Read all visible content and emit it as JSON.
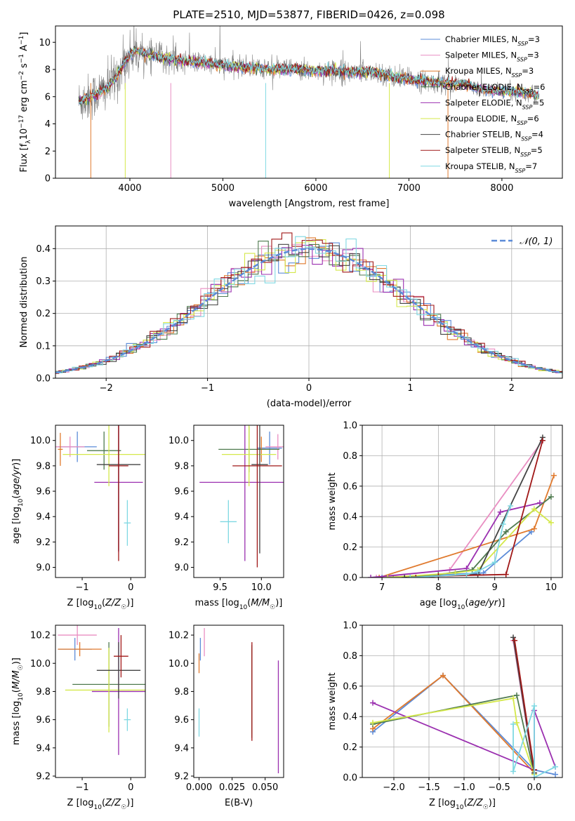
{
  "figure": {
    "title": "PLATE=2510, MJD=53877, FIBERID=0426, z=0.098"
  },
  "chart_data": [
    {
      "type": "line",
      "panel": "spectrum",
      "title": "PLATE=2510, MJD=53877, FIBERID=0426, z=0.098",
      "xlabel": "wavelength [Angstrom, rest frame]",
      "ylabel": "Flux [f_λ 10^-17 erg cm^-2 s^-1 A^-1]",
      "xlim": [
        3200,
        8650
      ],
      "ylim": [
        0,
        11.2
      ],
      "xticks": [
        4000,
        5000,
        6000,
        7000,
        8000
      ],
      "yticks": [
        0,
        2,
        4,
        6,
        8,
        10
      ],
      "grid": false,
      "legend_position": "right",
      "data_series": {
        "name": "",
        "color": "#808080"
      },
      "continuum_points": {
        "x": [
          3450,
          3550,
          3650,
          3750,
          3850,
          3950,
          4050,
          4200,
          4400,
          4600,
          4800,
          5000,
          5200,
          5400,
          5600,
          5800,
          6000,
          6200,
          6400,
          6600,
          6800,
          7000,
          7200,
          7400,
          7600,
          7800,
          8000,
          8200,
          8400
        ],
        "y": [
          5.6,
          5.9,
          6.2,
          6.6,
          7.4,
          8.6,
          9.4,
          9.1,
          8.8,
          8.6,
          8.5,
          8.3,
          8.2,
          8.1,
          8.0,
          8.0,
          7.9,
          7.9,
          7.8,
          7.9,
          7.5,
          7.3,
          7.1,
          7.0,
          6.9,
          6.5,
          6.4,
          6.3,
          6.1
        ]
      },
      "series": [
        {
          "name": "Chabrier MILES, N_SSP=3",
          "color": "#5b8bd8"
        },
        {
          "name": "Salpeter MILES, N_SSP=3",
          "color": "#e98ec2"
        },
        {
          "name": "Kroupa MILES, N_SSP=3",
          "color": "#e07a2e"
        },
        {
          "name": "Chabrier ELODIE, N_SSP=6",
          "color": "#4f7a4f"
        },
        {
          "name": "Salpeter ELODIE, N_SSP=5",
          "color": "#9b30b0"
        },
        {
          "name": "Kroupa ELODIE, N_SSP=6",
          "color": "#d4e84a"
        },
        {
          "name": "Chabrier STELIB, N_SSP=4",
          "color": "#444444"
        },
        {
          "name": "Salpeter STELIB, N_SSP=5",
          "color": "#a01818"
        },
        {
          "name": "Kroupa STELIB, N_SSP=7",
          "color": "#7fd8e2"
        }
      ]
    },
    {
      "type": "histogram",
      "panel": "residuals",
      "xlabel": "(data-model)/error",
      "ylabel": "Normed distribution",
      "xlim": [
        -2.5,
        2.5
      ],
      "ylim": [
        0,
        0.47
      ],
      "xticks": [
        -2,
        -1,
        0,
        1,
        2
      ],
      "yticks": [
        0.0,
        0.1,
        0.2,
        0.3,
        0.4
      ],
      "grid": true,
      "legend_position": "top-right",
      "reference_curve": {
        "name": "𝒩(0, 1)",
        "color": "#5b8bd8",
        "style": "dashed"
      },
      "bin_width": 0.1
    },
    {
      "type": "scatter",
      "panel": "age-vs-Z",
      "xlabel": "Z [log10(Z/Z☉)]",
      "ylabel": "age [log10(age/yr)]",
      "xlim": [
        -1.55,
        0.3
      ],
      "ylim": [
        8.92,
        10.12
      ],
      "xticks": [
        -1,
        0
      ],
      "yticks": [
        9.0,
        9.2,
        9.4,
        9.6,
        9.8,
        10.0
      ],
      "points": [
        {
          "series": 0,
          "x": -1.1,
          "y": 9.95,
          "xerr": 0.4,
          "yerr": 0.12
        },
        {
          "series": 1,
          "x": -1.25,
          "y": 9.95,
          "xerr": 0.3,
          "yerr": 0.08
        },
        {
          "series": 2,
          "x": -1.45,
          "y": 9.93,
          "xerr": 0.05,
          "yerr": 0.13
        },
        {
          "series": 3,
          "x": -0.55,
          "y": 9.92,
          "xerr": 0.35,
          "yerr": 0.15
        },
        {
          "series": 4,
          "x": -0.25,
          "y": 9.67,
          "xerr": 0.5,
          "yerr": 0.55
        },
        {
          "series": 5,
          "x": -0.45,
          "y": 9.89,
          "xerr": 0.95,
          "yerr": 0.25
        },
        {
          "series": 6,
          "x": -0.25,
          "y": 9.81,
          "xerr": 0.45,
          "yerr": 0.68
        },
        {
          "series": 7,
          "x": -0.25,
          "y": 9.8,
          "xerr": 0.2,
          "yerr": 0.75
        },
        {
          "series": 8,
          "x": -0.07,
          "y": 9.35,
          "xerr": 0.07,
          "yerr": 0.18
        }
      ]
    },
    {
      "type": "scatter",
      "panel": "age-vs-mass",
      "xlabel": "mass [log10(M/M☉)]",
      "ylabel": "",
      "xlim": [
        9.18,
        10.27
      ],
      "ylim": [
        8.92,
        10.12
      ],
      "xticks": [
        9.5,
        10.0
      ],
      "yticks": [
        9.0,
        9.2,
        9.4,
        9.6,
        9.8,
        10.0
      ],
      "points": [
        {
          "series": 0,
          "x": 10.1,
          "y": 9.94,
          "xerr": 0.15,
          "yerr": 0.13
        },
        {
          "series": 1,
          "x": 10.2,
          "y": 9.95,
          "xerr": 0.15,
          "yerr": 0.1
        },
        {
          "series": 2,
          "x": 10.0,
          "y": 9.93,
          "xerr": 0.05,
          "yerr": 0.1
        },
        {
          "series": 3,
          "x": 9.85,
          "y": 9.93,
          "xerr": 0.37,
          "yerr": 0.18
        },
        {
          "series": 4,
          "x": 9.8,
          "y": 9.67,
          "xerr": 0.55,
          "yerr": 0.62
        },
        {
          "series": 5,
          "x": 9.85,
          "y": 9.89,
          "xerr": 0.33,
          "yerr": 0.25
        },
        {
          "series": 6,
          "x": 9.98,
          "y": 9.81,
          "xerr": 0.1,
          "yerr": 0.7
        },
        {
          "series": 7,
          "x": 9.95,
          "y": 9.8,
          "xerr": 0.3,
          "yerr": 0.8
        },
        {
          "series": 8,
          "x": 9.6,
          "y": 9.36,
          "xerr": 0.1,
          "yerr": 0.17
        }
      ]
    },
    {
      "type": "line",
      "panel": "massweight-vs-age",
      "xlabel": "age [log10(age/yr)]",
      "ylabel": "mass weight",
      "xlim": [
        6.65,
        10.2
      ],
      "ylim": [
        0,
        1.0
      ],
      "xticks": [
        7,
        8,
        9,
        10
      ],
      "yticks": [
        0.0,
        0.2,
        0.4,
        0.6,
        0.8,
        1.0
      ],
      "grid": true,
      "series": [
        {
          "series": 0,
          "x": [
            7.0,
            8.8,
            9.65
          ],
          "y": [
            0.0,
            0.03,
            0.3
          ]
        },
        {
          "series": 1,
          "x": [
            6.9,
            8.2,
            9.85
          ],
          "y": [
            0.0,
            0.05,
            0.9
          ]
        },
        {
          "series": 2,
          "x": [
            6.95,
            9.7,
            10.05
          ],
          "y": [
            0.0,
            0.32,
            0.67
          ]
        },
        {
          "series": 3,
          "x": [
            7.2,
            8.0,
            8.6,
            9.2,
            10.0
          ],
          "y": [
            0.0,
            0.02,
            0.05,
            0.3,
            0.53
          ]
        },
        {
          "series": 4,
          "x": [
            6.8,
            8.5,
            9.1,
            9.8
          ],
          "y": [
            0.0,
            0.06,
            0.43,
            0.49
          ]
        },
        {
          "series": 5,
          "x": [
            7.1,
            8.3,
            8.7,
            9.7,
            10.0
          ],
          "y": [
            0.0,
            0.03,
            0.05,
            0.45,
            0.36
          ]
        },
        {
          "series": 6,
          "x": [
            7.4,
            8.7,
            9.85
          ],
          "y": [
            0.0,
            0.02,
            0.92
          ]
        },
        {
          "series": 7,
          "x": [
            7.6,
            8.0,
            9.2,
            9.85
          ],
          "y": [
            0.0,
            0.01,
            0.02,
            0.9
          ]
        },
        {
          "series": 8,
          "x": [
            7.5,
            8.5,
            8.7,
            9.0,
            9.15,
            9.28
          ],
          "y": [
            0.0,
            0.02,
            0.04,
            0.1,
            0.35,
            0.47
          ]
        }
      ]
    },
    {
      "type": "scatter",
      "panel": "mass-vs-Z",
      "xlabel": "Z [log10(Z/Z☉)]",
      "ylabel": "mass [log10(M/M☉)]",
      "xlim": [
        -1.55,
        0.3
      ],
      "ylim": [
        9.19,
        10.27
      ],
      "xticks": [
        -1,
        0
      ],
      "yticks": [
        9.2,
        9.4,
        9.6,
        9.8,
        10.0,
        10.2
      ],
      "points": [
        {
          "series": 0,
          "x": -1.15,
          "y": 10.1,
          "xerr": 0.35,
          "yerr": 0.08
        },
        {
          "series": 1,
          "x": -1.1,
          "y": 10.2,
          "xerr": 0.4,
          "yerr": 0.07
        },
        {
          "series": 2,
          "x": -1.05,
          "y": 10.1,
          "xerr": 0.45,
          "yerr": 0.05
        },
        {
          "series": 3,
          "x": -0.45,
          "y": 9.85,
          "xerr": 0.75,
          "yerr": 0.3
        },
        {
          "series": 4,
          "x": -0.25,
          "y": 9.8,
          "xerr": 0.55,
          "yerr": 0.45
        },
        {
          "series": 5,
          "x": -0.45,
          "y": 9.81,
          "xerr": 0.9,
          "yerr": 0.3
        },
        {
          "series": 6,
          "x": -0.25,
          "y": 9.95,
          "xerr": 0.45,
          "yerr": 0.2
        },
        {
          "series": 7,
          "x": -0.2,
          "y": 10.05,
          "xerr": 0.15,
          "yerr": 0.15
        },
        {
          "series": 8,
          "x": -0.07,
          "y": 9.6,
          "xerr": 0.07,
          "yerr": 0.08
        }
      ]
    },
    {
      "type": "scatter",
      "panel": "mass-vs-EBV",
      "xlabel": "E(B-V)",
      "ylabel": "",
      "xlim": [
        -0.004,
        0.064
      ],
      "ylim": [
        9.19,
        10.27
      ],
      "xticks": [
        0.0,
        0.025,
        0.05
      ],
      "xtick_labels": [
        "0.000",
        "0.025",
        "0.050"
      ],
      "yticks": [
        9.2,
        9.4,
        9.6,
        9.8,
        10.0,
        10.2
      ],
      "points": [
        {
          "series": 0,
          "x": 0.001,
          "y": 10.1,
          "yerr": 0.08
        },
        {
          "series": 1,
          "x": 0.004,
          "y": 10.15,
          "yerr": 0.1
        },
        {
          "series": 2,
          "x": 0.0,
          "y": 10.0,
          "yerr": 0.07
        },
        {
          "series": 3,
          "x": 0.04,
          "y": 9.8,
          "yerr": 0.3
        },
        {
          "series": 4,
          "x": 0.06,
          "y": 9.62,
          "yerr": 0.4
        },
        {
          "series": 5,
          "x": 0.04,
          "y": 9.8,
          "yerr": 0.32
        },
        {
          "series": 6,
          "x": 0.04,
          "y": 9.8,
          "yerr": 0.33
        },
        {
          "series": 7,
          "x": 0.04,
          "y": 9.8,
          "yerr": 0.35
        },
        {
          "series": 8,
          "x": 0.0,
          "y": 9.58,
          "yerr": 0.1
        }
      ]
    },
    {
      "type": "line",
      "panel": "massweight-vs-Z",
      "xlabel": "Z [log10(Z/Z☉)]",
      "ylabel": "mass weight",
      "xlim": [
        -2.45,
        0.4
      ],
      "ylim": [
        0,
        1.0
      ],
      "xticks": [
        -2.0,
        -1.5,
        -1.0,
        -0.5,
        0.0
      ],
      "yticks": [
        0.0,
        0.2,
        0.4,
        0.6,
        0.8,
        1.0
      ],
      "grid": true,
      "series": [
        {
          "series": 0,
          "x": [
            -2.3,
            -1.3,
            0.0,
            0.3
          ],
          "y": [
            0.3,
            0.67,
            0.05,
            0.02
          ]
        },
        {
          "series": 1,
          "x": [
            -0.3,
            -0.3,
            0.0
          ],
          "y": [
            0.9,
            0.9,
            0.02
          ]
        },
        {
          "series": 2,
          "x": [
            -2.3,
            -1.3,
            0.0
          ],
          "y": [
            0.32,
            0.67,
            0.03
          ]
        },
        {
          "series": 3,
          "x": [
            -2.3,
            -0.25,
            0.0
          ],
          "y": [
            0.35,
            0.54,
            0.02
          ]
        },
        {
          "series": 4,
          "x": [
            -2.3,
            0.0,
            0.0,
            0.3
          ],
          "y": [
            0.49,
            0.05,
            0.44,
            0.07
          ]
        },
        {
          "series": 5,
          "x": [
            -2.3,
            -0.3,
            -0.25,
            0.0
          ],
          "y": [
            0.36,
            0.52,
            0.36,
            0.02
          ]
        },
        {
          "series": 6,
          "x": [
            -0.3,
            0.0
          ],
          "y": [
            0.92,
            0.03
          ]
        },
        {
          "series": 7,
          "x": [
            -0.28,
            0.0
          ],
          "y": [
            0.9,
            0.05
          ]
        },
        {
          "series": 8,
          "x": [
            -0.3,
            -0.3,
            0.0,
            0.0,
            0.3
          ],
          "y": [
            0.35,
            0.04,
            0.47,
            0.0,
            0.07
          ]
        }
      ]
    }
  ]
}
